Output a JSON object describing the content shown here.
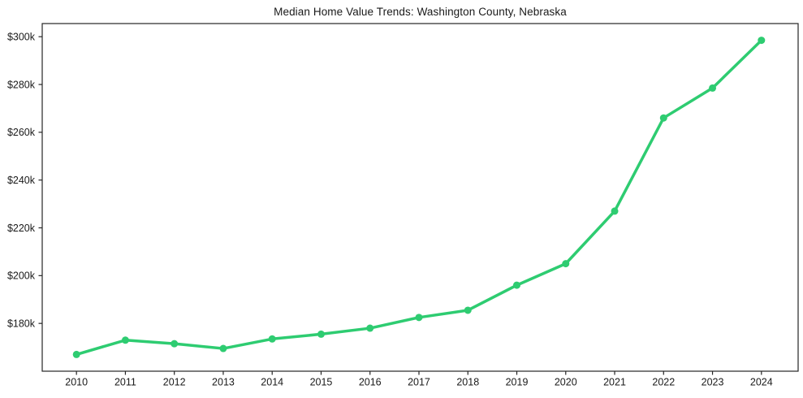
{
  "figure": {
    "background_color": "#ffffff",
    "axis_color": "#262626",
    "text_color": "#1a1a1a"
  },
  "chart_data": {
    "type": "line",
    "title": "Median Home Value Trends: Washington County, Nebraska",
    "xlabel": "",
    "ylabel": "",
    "x": [
      2010,
      2011,
      2012,
      2013,
      2014,
      2015,
      2016,
      2017,
      2018,
      2019,
      2020,
      2021,
      2022,
      2023,
      2024
    ],
    "series": [
      {
        "name": "Median Home Value",
        "values": [
          167000,
          173000,
          171500,
          169500,
          173500,
          175500,
          178000,
          182500,
          185500,
          196000,
          205000,
          227000,
          266000,
          278500,
          298500
        ],
        "color": "#2ecc71",
        "marker": "circle"
      }
    ],
    "xlim": [
      2009.3,
      2024.75
    ],
    "ylim": [
      160000,
      305500
    ],
    "xticks": [
      {
        "value": 2010,
        "label": "2010"
      },
      {
        "value": 2011,
        "label": "2011"
      },
      {
        "value": 2012,
        "label": "2012"
      },
      {
        "value": 2013,
        "label": "2013"
      },
      {
        "value": 2014,
        "label": "2014"
      },
      {
        "value": 2015,
        "label": "2015"
      },
      {
        "value": 2016,
        "label": "2016"
      },
      {
        "value": 2017,
        "label": "2017"
      },
      {
        "value": 2018,
        "label": "2018"
      },
      {
        "value": 2019,
        "label": "2019"
      },
      {
        "value": 2020,
        "label": "2020"
      },
      {
        "value": 2021,
        "label": "2021"
      },
      {
        "value": 2022,
        "label": "2022"
      },
      {
        "value": 2023,
        "label": "2023"
      },
      {
        "value": 2024,
        "label": "2024"
      }
    ],
    "yticks": [
      {
        "value": 180000,
        "label": "$180k"
      },
      {
        "value": 200000,
        "label": "$200k"
      },
      {
        "value": 220000,
        "label": "$220k"
      },
      {
        "value": 240000,
        "label": "$240k"
      },
      {
        "value": 260000,
        "label": "$260k"
      },
      {
        "value": 280000,
        "label": "$280k"
      },
      {
        "value": 300000,
        "label": "$300k"
      }
    ],
    "grid": false,
    "legend": "none"
  }
}
